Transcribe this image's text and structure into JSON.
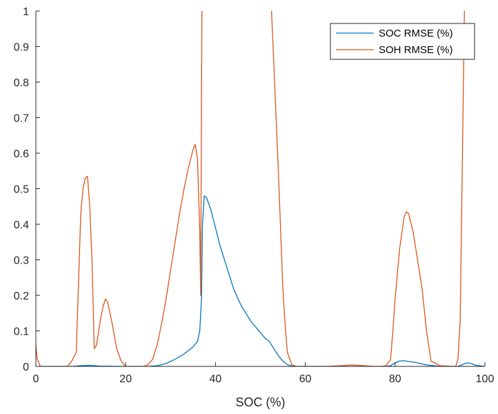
{
  "chart_data": {
    "type": "line",
    "title": "",
    "xlabel": "SOC (%)",
    "ylabel": "",
    "xlim": [
      0,
      100
    ],
    "ylim": [
      0,
      1
    ],
    "x_ticks": [
      0,
      20,
      40,
      60,
      80,
      100
    ],
    "y_ticks": [
      0,
      0.1,
      0.2,
      0.3,
      0.4,
      0.5,
      0.6,
      0.7,
      0.8,
      0.9,
      1
    ],
    "x_tick_labels": [
      "0",
      "20",
      "40",
      "60",
      "80",
      "100"
    ],
    "y_tick_labels": [
      "0",
      "0.1",
      "0.2",
      "0.3",
      "0.4",
      "0.5",
      "0.6",
      "0.7",
      "0.8",
      "0.9",
      "1"
    ],
    "grid": false,
    "legend_position": "top-right",
    "series": [
      {
        "name": "SOC RMSE (%)",
        "color": "#0072BD",
        "x": [
          0,
          5,
          8,
          10,
          12,
          14,
          20,
          25,
          27,
          29,
          31,
          33,
          35,
          36,
          36.5,
          36.9,
          37.1,
          37.5,
          38,
          39,
          40,
          41,
          42,
          43,
          44,
          45,
          46,
          47,
          48,
          49,
          50,
          51,
          52,
          53,
          54,
          55,
          56,
          57,
          58,
          60,
          65,
          70,
          75,
          78,
          79,
          80,
          81,
          82,
          83,
          85,
          87,
          90,
          94,
          95,
          96,
          97,
          98,
          100
        ],
        "y": [
          0,
          0,
          0,
          0.002,
          0.003,
          0.001,
          0,
          0,
          0.002,
          0.008,
          0.02,
          0.035,
          0.055,
          0.07,
          0.1,
          0.195,
          0.4,
          0.48,
          0.475,
          0.44,
          0.39,
          0.34,
          0.3,
          0.26,
          0.22,
          0.19,
          0.165,
          0.145,
          0.125,
          0.11,
          0.095,
          0.08,
          0.07,
          0.05,
          0.03,
          0.015,
          0.005,
          0.001,
          0,
          0,
          0,
          0,
          0,
          0,
          0.002,
          0.01,
          0.015,
          0.016,
          0.014,
          0.01,
          0.004,
          0,
          0,
          0.005,
          0.01,
          0.008,
          0.003,
          0
        ]
      },
      {
        "name": "SOH RMSE (%)",
        "color": "#D95319",
        "x": [
          0,
          0.3,
          1,
          7,
          8,
          9,
          10,
          10.5,
          11,
          11.5,
          12,
          12.5,
          13,
          13.5,
          14,
          14.5,
          15,
          15.5,
          16,
          17,
          18,
          19,
          20,
          22,
          24,
          25,
          26,
          27,
          28,
          29,
          30,
          31,
          32,
          33,
          34,
          35,
          35.5,
          36,
          36.5,
          36.7,
          37,
          52.3,
          53,
          54,
          55,
          55.5,
          56,
          57,
          58,
          60,
          65,
          68,
          70,
          72,
          75,
          77,
          78,
          79,
          79.5,
          80,
          81,
          82,
          82.5,
          83,
          84,
          85,
          86,
          87,
          88,
          90,
          93,
          93.5,
          94,
          94.5,
          95,
          95.5
        ],
        "y": [
          0.06,
          0.02,
          0,
          0,
          0.015,
          0.04,
          0.43,
          0.5,
          0.53,
          0.535,
          0.45,
          0.3,
          0.05,
          0.06,
          0.1,
          0.14,
          0.17,
          0.19,
          0.18,
          0.12,
          0.05,
          0.015,
          0,
          0,
          0,
          0.005,
          0.02,
          0.06,
          0.12,
          0.19,
          0.27,
          0.35,
          0.43,
          0.5,
          0.56,
          0.61,
          0.625,
          0.58,
          0.38,
          0.2,
          1.05,
          1.05,
          0.85,
          0.55,
          0.22,
          0.12,
          0.04,
          0.005,
          0,
          0,
          0,
          0.002,
          0.004,
          0.003,
          0,
          0,
          0.002,
          0.02,
          0.1,
          0.19,
          0.33,
          0.42,
          0.435,
          0.43,
          0.38,
          0.3,
          0.22,
          0.1,
          0.015,
          0.002,
          0,
          0,
          0.02,
          0.13,
          0.6,
          1.05
        ]
      }
    ]
  }
}
